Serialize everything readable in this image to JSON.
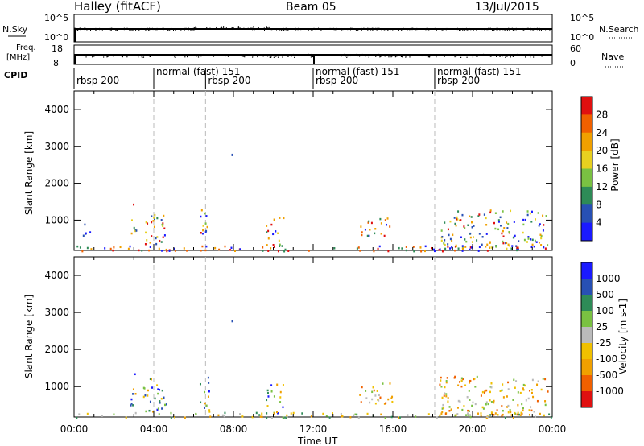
{
  "header": {
    "title": "Halley (fitACF)",
    "beam": "Beam 05",
    "date": "13/Jul/2015"
  },
  "noise_panel": {
    "left_label": "N.Sky",
    "left_ticks": [
      "10^5",
      "10^0"
    ],
    "right_label": "N.Search",
    "right_ticks": [
      "10^5",
      "10^0"
    ]
  },
  "freq_panel": {
    "left_label_1": "Freq.",
    "left_label_2": "[MHz]",
    "left_ticks": [
      "18",
      "8"
    ],
    "right_label": "Nave",
    "right_ticks": [
      "60",
      "0"
    ]
  },
  "cpid": {
    "label": "CPID",
    "modes": [
      {
        "name": "rbsp 200",
        "start_h": 0,
        "row": 1
      },
      {
        "name": "normal (fast) 151",
        "start_h": 4,
        "row": 0
      },
      {
        "name": "rbsp 200",
        "start_h": 6.6,
        "row": 1
      },
      {
        "name": "normal (fast) 151",
        "start_h": 12,
        "row": 0
      },
      {
        "name": "rbsp 200",
        "start_h": 12,
        "row": 1
      },
      {
        "name": "normal (fast) 151",
        "start_h": 18.1,
        "row": 0
      },
      {
        "name": "rbsp 200",
        "start_h": 18.1,
        "row": 1
      }
    ]
  },
  "chart_data": [
    {
      "type": "heatmap",
      "panel": "power",
      "ylabel": "Slant Range [km]",
      "ylim": [
        180,
        4500
      ],
      "xlim_hours": [
        0,
        24
      ],
      "yticks": [
        "1000",
        "2000",
        "3000",
        "4000"
      ],
      "colorbar": {
        "label": "Power [dB]",
        "ticks": [
          "4",
          "8",
          "12",
          "16",
          "20",
          "24",
          "28"
        ],
        "colors": [
          "#1a1aff",
          "#2850b4",
          "#2e8b57",
          "#7ac142",
          "#e8d020",
          "#f0a000",
          "#f06000",
          "#e01010"
        ]
      },
      "echo_regions": [
        {
          "t0": 0.0,
          "t1": 24.0,
          "r0": 180,
          "r1": 320,
          "level": "high"
        },
        {
          "t0": 0.3,
          "t1": 0.8,
          "r0": 600,
          "r1": 1000,
          "level": "low"
        },
        {
          "t0": 2.8,
          "t1": 3.1,
          "r0": 500,
          "r1": 1500,
          "level": "mixed"
        },
        {
          "t0": 3.4,
          "t1": 4.6,
          "r0": 350,
          "r1": 1300,
          "level": "mixed"
        },
        {
          "t0": 6.3,
          "t1": 6.8,
          "r0": 350,
          "r1": 1300,
          "level": "mixed"
        },
        {
          "t0": 9.6,
          "t1": 10.5,
          "r0": 300,
          "r1": 1100,
          "level": "mixed"
        },
        {
          "t0": 14.3,
          "t1": 15.9,
          "r0": 600,
          "r1": 1100,
          "level": "high"
        },
        {
          "t0": 18.3,
          "t1": 23.8,
          "r0": 250,
          "r1": 1300,
          "level": "mixed"
        }
      ],
      "isolated_points": [
        {
          "t": 7.9,
          "r": 2800
        }
      ]
    },
    {
      "type": "heatmap",
      "panel": "velocity",
      "ylabel": "Slant Range [km]",
      "xlabel": "Time UT",
      "ylim": [
        180,
        4500
      ],
      "xlim_hours": [
        0,
        24
      ],
      "yticks": [
        "1000",
        "2000",
        "3000",
        "4000"
      ],
      "xticks": [
        "00:00",
        "04:00",
        "08:00",
        "12:00",
        "16:00",
        "20:00",
        "00:00"
      ],
      "colorbar": {
        "label": "Velocity [m s-1]",
        "ticks": [
          "1000",
          "500",
          "100",
          "25",
          "-25",
          "-100",
          "-500",
          "-1000"
        ],
        "colors": [
          "#1a1aff",
          "#2850b4",
          "#2e8b57",
          "#7ac142",
          "#bbbbbb",
          "#f0c000",
          "#f0a000",
          "#f06000",
          "#e01010"
        ]
      },
      "echo_regions": [
        {
          "t0": 0.0,
          "t1": 24.0,
          "r0": 180,
          "r1": 320,
          "level": "ground"
        },
        {
          "t0": 2.8,
          "t1": 3.1,
          "r0": 500,
          "r1": 1500,
          "level": "mixed"
        },
        {
          "t0": 3.4,
          "t1": 4.6,
          "r0": 350,
          "r1": 1300,
          "level": "mixed"
        },
        {
          "t0": 6.3,
          "t1": 6.8,
          "r0": 350,
          "r1": 1300,
          "level": "mixed"
        },
        {
          "t0": 9.6,
          "t1": 10.5,
          "r0": 300,
          "r1": 1100,
          "level": "mixed"
        },
        {
          "t0": 14.3,
          "t1": 16.0,
          "r0": 550,
          "r1": 1150,
          "level": "away"
        },
        {
          "t0": 18.3,
          "t1": 23.8,
          "r0": 250,
          "r1": 1300,
          "level": "away"
        }
      ],
      "isolated_points": [
        {
          "t": 7.9,
          "r": 2800
        }
      ]
    }
  ]
}
